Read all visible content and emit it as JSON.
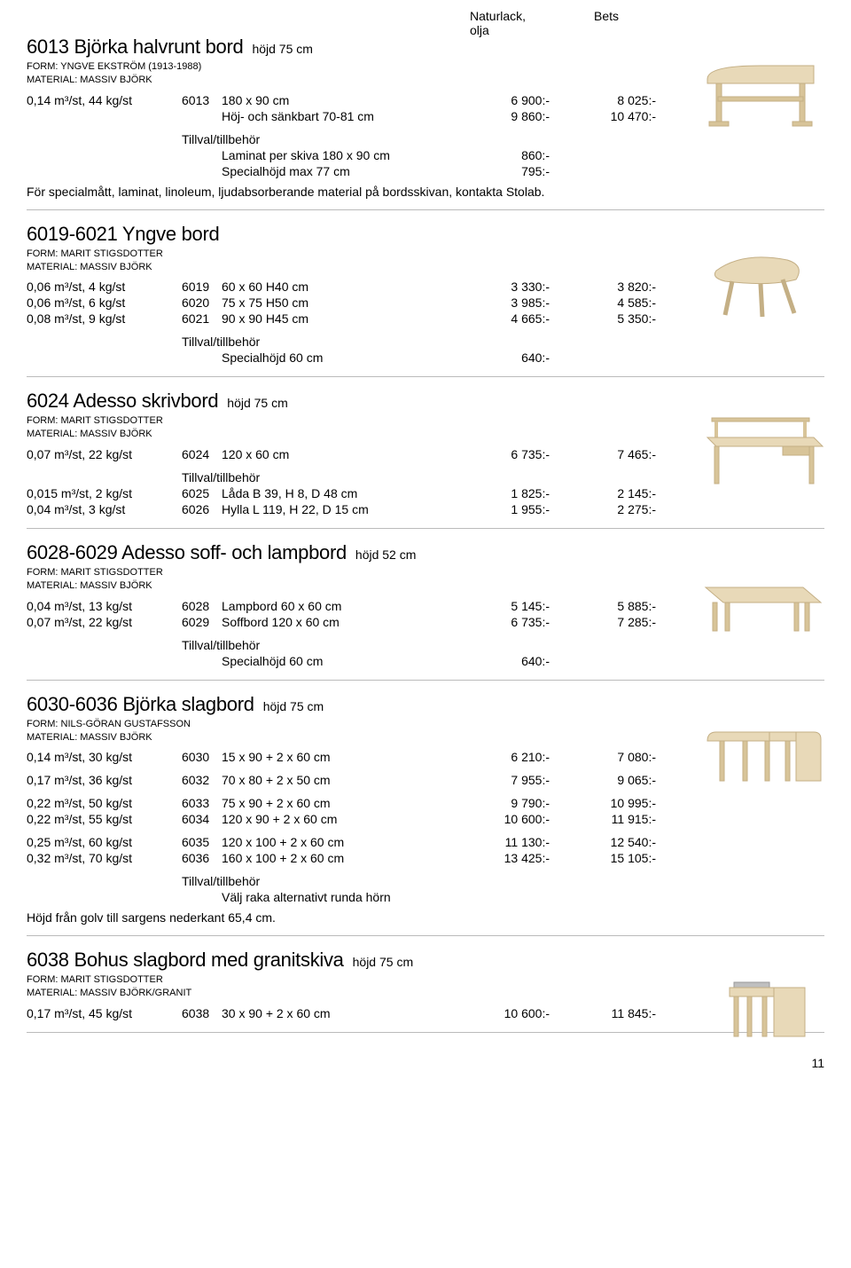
{
  "headers": {
    "price1": "Naturlack,\nolja",
    "price2": "Bets"
  },
  "products": [
    {
      "id": "p6013",
      "title": "6013 Björka halvrunt bord",
      "height": "höjd 75 cm",
      "form": "FORM: YNGVE EKSTRÖM (1913-1988)",
      "material": "MATERIAL: MASSIV BJÖRK",
      "rows": [
        {
          "spec": "0,14 m³/st, 44 kg/st",
          "art": "6013",
          "desc": "180 x 90 cm",
          "p1": "6 900:-",
          "p2": "8 025:-"
        },
        {
          "spec": "",
          "art": "",
          "desc": "Höj- och sänkbart 70-81 cm",
          "p1": "9 860:-",
          "p2": "10 470:-"
        }
      ],
      "tillval_label": "Tillval/tillbehör",
      "tillval_rows": [
        {
          "desc": "Laminat per skiva 180 x 90 cm",
          "p1": "860:-",
          "p2": ""
        },
        {
          "desc": "Specialhöjd max 77 cm",
          "p1": "795:-",
          "p2": ""
        }
      ],
      "note": "För specialmått, laminat, linoleum, ljudabsorberande material på bordsskivan, kontakta Stolab.",
      "image": "table-halfround"
    },
    {
      "id": "p6019",
      "title": "6019-6021 Yngve bord",
      "height": "",
      "form": "FORM: MARIT STIGSDOTTER",
      "material": "MATERIAL: MASSIV BJÖRK",
      "rows": [
        {
          "spec": "0,06 m³/st, 4 kg/st",
          "art": "6019",
          "desc": "60 x 60 H40 cm",
          "p1": "3 330:-",
          "p2": "3 820:-"
        },
        {
          "spec": "0,06 m³/st, 6 kg/st",
          "art": "6020",
          "desc": "75 x 75 H50 cm",
          "p1": "3 985:-",
          "p2": "4 585:-"
        },
        {
          "spec": "0,08 m³/st, 9 kg/st",
          "art": "6021",
          "desc": "90 x 90 H45 cm",
          "p1": "4 665:-",
          "p2": "5 350:-"
        }
      ],
      "tillval_label": "Tillval/tillbehör",
      "tillval_rows": [
        {
          "desc": "Specialhöjd 60 cm",
          "p1": "640:-",
          "p2": ""
        }
      ],
      "note": "",
      "image": "table-triangle"
    },
    {
      "id": "p6024",
      "title": "6024 Adesso skrivbord",
      "height": "höjd 75 cm",
      "form": "FORM: MARIT STIGSDOTTER",
      "material": "MATERIAL: MASSIV BJÖRK",
      "rows": [
        {
          "spec": "0,07 m³/st, 22 kg/st",
          "art": "6024",
          "desc": "120 x 60 cm",
          "p1": "6 735:-",
          "p2": "7 465:-"
        }
      ],
      "tillval_label": "Tillval/tillbehör",
      "tillval_rows": [
        {
          "spec": "0,015 m³/st, 2 kg/st",
          "art": "6025",
          "desc": "Låda B 39, H 8, D 48 cm",
          "p1": "1 825:-",
          "p2": "2 145:-"
        },
        {
          "spec": "0,04 m³/st, 3 kg/st",
          "art": "6026",
          "desc": "Hylla L 119, H 22, D 15 cm",
          "p1": "1 955:-",
          "p2": "2 275:-"
        }
      ],
      "note": "",
      "image": "desk"
    },
    {
      "id": "p6028",
      "title": "6028-6029 Adesso soff- och lampbord",
      "height": "höjd 52 cm",
      "form": "FORM: MARIT STIGSDOTTER",
      "material": "MATERIAL: MASSIV BJÖRK",
      "rows": [
        {
          "spec": "0,04 m³/st, 13 kg/st",
          "art": "6028",
          "desc": "Lampbord 60 x 60 cm",
          "p1": "5 145:-",
          "p2": "5 885:-"
        },
        {
          "spec": "0,07 m³/st, 22 kg/st",
          "art": "6029",
          "desc": "Soffbord 120 x 60 cm",
          "p1": "6 735:-",
          "p2": "7 285:-"
        }
      ],
      "tillval_label": "Tillval/tillbehör",
      "tillval_rows": [
        {
          "desc": "Specialhöjd 60 cm",
          "p1": "640:-",
          "p2": ""
        }
      ],
      "note": "",
      "image": "coffee-table"
    },
    {
      "id": "p6030",
      "title": "6030-6036 Björka slagbord",
      "height": "höjd 75 cm",
      "form": "FORM: NILS-GÖRAN GUSTAFSSON",
      "material": "MATERIAL: MASSIV BJÖRK",
      "rows": [
        {
          "spec": "0,14 m³/st, 30 kg/st",
          "art": "6030",
          "desc": "15 x 90 + 2 x 60 cm",
          "p1": "6 210:-",
          "p2": "7 080:-"
        },
        {
          "spacer": true
        },
        {
          "spec": "0,17 m³/st, 36 kg/st",
          "art": "6032",
          "desc": "70 x 80 + 2 x 50 cm",
          "p1": "7 955:-",
          "p2": "9 065:-"
        },
        {
          "spacer": true
        },
        {
          "spec": "0,22 m³/st, 50 kg/st",
          "art": "6033",
          "desc": "75 x 90 + 2 x 60 cm",
          "p1": "9 790:-",
          "p2": "10 995:-"
        },
        {
          "spec": "0,22 m³/st, 55 kg/st",
          "art": "6034",
          "desc": "120 x 90 + 2 x 60 cm",
          "p1": "10 600:-",
          "p2": "11 915:-"
        },
        {
          "spacer": true
        },
        {
          "spec": "0,25 m³/st, 60 kg/st",
          "art": "6035",
          "desc": "120 x 100 + 2 x 60 cm",
          "p1": "11 130:-",
          "p2": "12 540:-"
        },
        {
          "spec": "0,32 m³/st, 70 kg/st",
          "art": "6036",
          "desc": "160 x 100 + 2 x 60 cm",
          "p1": "13 425:-",
          "p2": "15 105:-"
        }
      ],
      "tillval_label": "Tillval/tillbehör",
      "tillval_rows": [
        {
          "desc": "Välj raka alternativt runda hörn",
          "p1": "",
          "p2": ""
        }
      ],
      "note": "Höjd från golv till sargens nederkant 65,4 cm.",
      "image": "dropleaf"
    },
    {
      "id": "p6038",
      "title": "6038 Bohus slagbord med granitskiva",
      "height": "höjd 75 cm",
      "form": "FORM: MARIT STIGSDOTTER",
      "material": "MATERIAL: MASSIV BJÖRK/GRANIT",
      "rows": [
        {
          "spec": "0,17 m³/st, 45 kg/st",
          "art": "6038",
          "desc": "30 x 90 + 2 x 60 cm",
          "p1": "10 600:-",
          "p2": "11 845:-"
        }
      ],
      "tillval_label": "",
      "tillval_rows": [],
      "note": "",
      "image": "dropleaf-granite"
    }
  ],
  "page_number": "11",
  "wood_colors": {
    "light": "#e8d9b8",
    "mid": "#d8c499",
    "edge": "#c4af85",
    "dark": "#b09a70"
  }
}
